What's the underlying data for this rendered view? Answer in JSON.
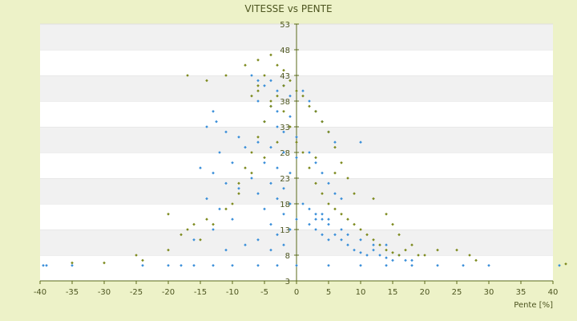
{
  "chart_data": {
    "type": "scatter",
    "title": "VITESSE vs PENTE",
    "xlabel": "Pente [%]",
    "ylabel": "",
    "xlim": [
      -40,
      40
    ],
    "ylim": [
      3,
      53
    ],
    "x_ticks": [
      "-40",
      "-35",
      "-30",
      "-25",
      "-20",
      "-15",
      "-10",
      "-5",
      "0",
      "5",
      "10",
      "15",
      "20",
      "25",
      "30",
      "35",
      "40"
    ],
    "y_ticks": [
      "3",
      "8",
      "13",
      "18",
      "23",
      "28",
      "33",
      "38",
      "43",
      "48",
      "53"
    ],
    "grid": true,
    "legend": "none",
    "series": [
      {
        "color": "#3a8fd9",
        "marker": "diamond",
        "points": [
          [
            -39.5,
            6
          ],
          [
            -39,
            6
          ],
          [
            -35,
            6
          ],
          [
            -24,
            6
          ],
          [
            -20,
            6
          ],
          [
            -18,
            6
          ],
          [
            -16,
            6
          ],
          [
            -13,
            6
          ],
          [
            -10,
            6
          ],
          [
            -6,
            6
          ],
          [
            -3,
            6
          ],
          [
            0,
            6
          ],
          [
            5,
            6
          ],
          [
            10,
            6
          ],
          [
            14,
            6
          ],
          [
            18,
            6
          ],
          [
            22,
            6
          ],
          [
            26,
            6
          ],
          [
            30,
            6
          ],
          [
            41,
            6
          ],
          [
            -13,
            36
          ],
          [
            -12.5,
            34
          ],
          [
            -14,
            33
          ],
          [
            -11,
            32
          ],
          [
            -9,
            31
          ],
          [
            -8,
            29
          ],
          [
            -12,
            28
          ],
          [
            -10,
            26
          ],
          [
            -15,
            25
          ],
          [
            -13,
            24
          ],
          [
            -11,
            22
          ],
          [
            -9,
            21
          ],
          [
            -14,
            19
          ],
          [
            -12,
            17
          ],
          [
            -10,
            15
          ],
          [
            -13,
            13
          ],
          [
            -16,
            11
          ],
          [
            -8,
            10
          ],
          [
            -11,
            9
          ],
          [
            -7,
            43
          ],
          [
            -6,
            42
          ],
          [
            -5,
            41
          ],
          [
            -4,
            42
          ],
          [
            -3,
            40
          ],
          [
            -2,
            41
          ],
          [
            -1,
            39
          ],
          [
            -6,
            38
          ],
          [
            -4,
            37
          ],
          [
            -3,
            36
          ],
          [
            -1,
            35
          ],
          [
            -5,
            34
          ],
          [
            -3,
            33
          ],
          [
            -2,
            32
          ],
          [
            0,
            31
          ],
          [
            -6,
            30
          ],
          [
            -4,
            29
          ],
          [
            -2,
            28
          ],
          [
            0,
            27
          ],
          [
            -5,
            26
          ],
          [
            -3,
            25
          ],
          [
            -1,
            24
          ],
          [
            -7,
            23
          ],
          [
            -4,
            22
          ],
          [
            -2,
            21
          ],
          [
            -6,
            20
          ],
          [
            -3,
            19
          ],
          [
            -1,
            18
          ],
          [
            -5,
            17
          ],
          [
            -2,
            16
          ],
          [
            0,
            15
          ],
          [
            -4,
            14
          ],
          [
            -1,
            13
          ],
          [
            -3,
            12
          ],
          [
            -6,
            11
          ],
          [
            -2,
            10
          ],
          [
            -4,
            9
          ],
          [
            1,
            40
          ],
          [
            2,
            38
          ],
          [
            3,
            36
          ],
          [
            4,
            34
          ],
          [
            5,
            32
          ],
          [
            6,
            30
          ],
          [
            10,
            30
          ],
          [
            2,
            28
          ],
          [
            3,
            26
          ],
          [
            4,
            24
          ],
          [
            5,
            22
          ],
          [
            6,
            20
          ],
          [
            7,
            19
          ],
          [
            1,
            18
          ],
          [
            2,
            17
          ],
          [
            3,
            16
          ],
          [
            4,
            15
          ],
          [
            5,
            14
          ],
          [
            3,
            13
          ],
          [
            4,
            12
          ],
          [
            5,
            11
          ],
          [
            6,
            12
          ],
          [
            7,
            11
          ],
          [
            8,
            10
          ],
          [
            2,
            14
          ],
          [
            3,
            15
          ],
          [
            4,
            16
          ],
          [
            5,
            15
          ],
          [
            9,
            9
          ],
          [
            10,
            8.5
          ],
          [
            11,
            8
          ],
          [
            12,
            9
          ],
          [
            13,
            8
          ],
          [
            14,
            7.5
          ],
          [
            15,
            7
          ],
          [
            16,
            8
          ],
          [
            17,
            7
          ],
          [
            18,
            7
          ],
          [
            12,
            10
          ],
          [
            14,
            10
          ],
          [
            10,
            11
          ],
          [
            8,
            12
          ],
          [
            7,
            13
          ]
        ]
      },
      {
        "color": "#7d8a1e",
        "marker": "diamond",
        "points": [
          [
            -17,
            43
          ],
          [
            -14,
            42
          ],
          [
            -11,
            43
          ],
          [
            -8,
            45
          ],
          [
            -6,
            46
          ],
          [
            -4,
            47
          ],
          [
            -3,
            45
          ],
          [
            -2,
            44
          ],
          [
            -1,
            42
          ],
          [
            0,
            40
          ],
          [
            1,
            39
          ],
          [
            2,
            37
          ],
          [
            3,
            36
          ],
          [
            4,
            34
          ],
          [
            5,
            32
          ],
          [
            6,
            29
          ],
          [
            7,
            26
          ],
          [
            8,
            23
          ],
          [
            -25,
            8
          ],
          [
            -20,
            9
          ],
          [
            -18,
            12
          ],
          [
            -17,
            13
          ],
          [
            -16,
            14
          ],
          [
            -14,
            15
          ],
          [
            -20,
            16
          ],
          [
            -10,
            18
          ],
          [
            -9,
            22
          ],
          [
            -8,
            25
          ],
          [
            -7,
            28
          ],
          [
            -6,
            31
          ],
          [
            -5,
            34
          ],
          [
            -4,
            37
          ],
          [
            -3,
            39
          ],
          [
            -2,
            41
          ],
          [
            -5,
            43
          ],
          [
            -6,
            41
          ],
          [
            -7,
            39
          ],
          [
            -1,
            33
          ],
          [
            0,
            30
          ],
          [
            1,
            28
          ],
          [
            2,
            25
          ],
          [
            3,
            22
          ],
          [
            4,
            20
          ],
          [
            5,
            18
          ],
          [
            6,
            17
          ],
          [
            7,
            16
          ],
          [
            8,
            15
          ],
          [
            9,
            14
          ],
          [
            10,
            13
          ],
          [
            11,
            12
          ],
          [
            12,
            11
          ],
          [
            13,
            10
          ],
          [
            14,
            9
          ],
          [
            15,
            8.5
          ],
          [
            16,
            8
          ],
          [
            17,
            9
          ],
          [
            19,
            8
          ],
          [
            20,
            8
          ],
          [
            22,
            9
          ],
          [
            25,
            9
          ],
          [
            27,
            8
          ],
          [
            28,
            7
          ],
          [
            12,
            19
          ],
          [
            14,
            16
          ],
          [
            15,
            14
          ],
          [
            16,
            12
          ],
          [
            18,
            10
          ],
          [
            9,
            20
          ],
          [
            6,
            24
          ],
          [
            3,
            27
          ],
          [
            -2,
            36
          ],
          [
            -4,
            38
          ],
          [
            -6,
            40
          ],
          [
            -3,
            30
          ],
          [
            -5,
            27
          ],
          [
            -7,
            24
          ],
          [
            -9,
            20
          ],
          [
            -11,
            17
          ],
          [
            -13,
            14
          ],
          [
            -15,
            11
          ],
          [
            -24,
            7
          ],
          [
            -30,
            6.5
          ],
          [
            -35,
            6.5
          ],
          [
            42,
            6.3
          ]
        ]
      }
    ]
  }
}
